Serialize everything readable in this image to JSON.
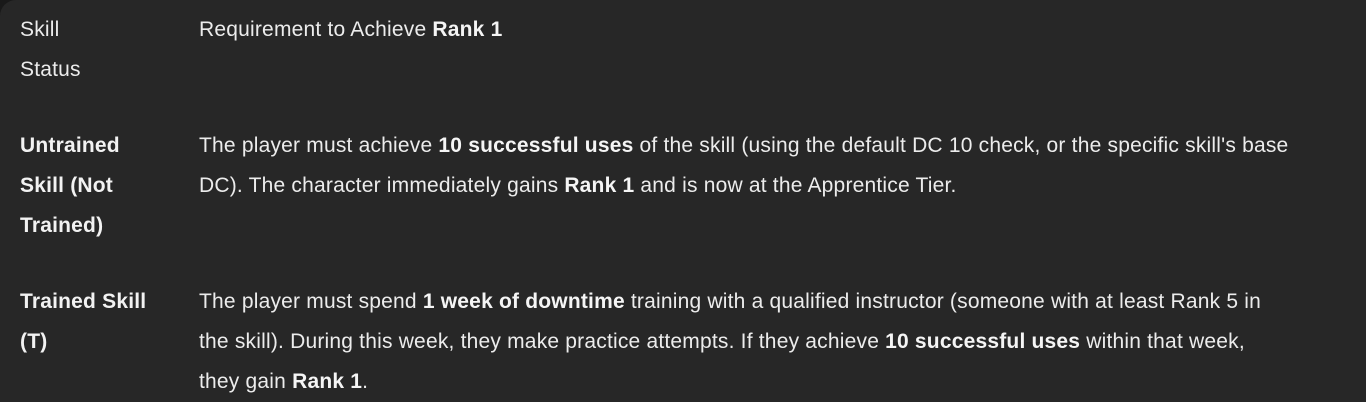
{
  "page": {
    "background_color": "#191919",
    "panel_background_color": "#272727",
    "text_color": "#ececec",
    "bold_text_color": "#f5f5f5"
  },
  "table": {
    "header": {
      "col1_label": "Skill Status",
      "col2_rich": [
        {
          "t": "Requirement to Achieve "
        },
        {
          "t": "Rank 1",
          "b": true
        }
      ]
    },
    "rows": [
      {
        "label": "Untrained Skill (Not Trained)",
        "requirement": [
          {
            "t": "The player must achieve "
          },
          {
            "t": "10 successful uses",
            "b": true
          },
          {
            "t": " of the skill (using the default DC 10 check, or the specific skill's base DC). The character immediately gains "
          },
          {
            "t": "Rank 1",
            "b": true
          },
          {
            "t": " and is now at the Apprentice Tier."
          }
        ]
      },
      {
        "label": "Trained Skill (T)",
        "requirement": [
          {
            "t": "The player must spend "
          },
          {
            "t": "1 week of downtime",
            "b": true
          },
          {
            "t": " training with a qualified instructor (someone with at least Rank 5 in the skill). During this week, they make practice attempts. If they achieve "
          },
          {
            "t": "10 successful uses",
            "b": true
          },
          {
            "t": " within that week, they gain "
          },
          {
            "t": "Rank 1",
            "b": true
          },
          {
            "t": "."
          }
        ]
      }
    ]
  }
}
